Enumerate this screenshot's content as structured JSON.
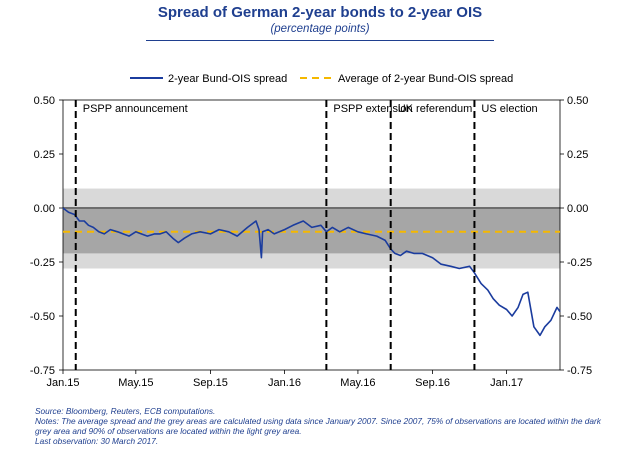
{
  "header": {
    "title": "Spread of German 2-year bonds to 2-year OIS",
    "subtitle": "(percentage points)"
  },
  "colors": {
    "series": "#1b3c9e",
    "average": "#f5b800",
    "dark_grey": "#a6a6a6",
    "light_grey": "#d9d9d9",
    "note_text": "#1f3f8f"
  },
  "chart_data": {
    "type": "line",
    "title": "Spread of German 2-year bonds to 2-year OIS",
    "subtitle": "(percentage points)",
    "ylim": [
      -0.75,
      0.5
    ],
    "y_ticks": [
      0.5,
      0.25,
      0.0,
      -0.25,
      -0.5,
      -0.75
    ],
    "y_tick_labels": [
      "0.50",
      "0.25",
      "0.00",
      "-0.25",
      "-0.50",
      "-0.75"
    ],
    "x_range": [
      "2015-01-01",
      "2017-03-30"
    ],
    "x_ticks": [
      "2015-01-01",
      "2015-05-01",
      "2015-09-01",
      "2016-01-01",
      "2016-05-01",
      "2016-09-01",
      "2017-01-01"
    ],
    "x_tick_labels": [
      "Jan.15",
      "May.15",
      "Sep.15",
      "Jan.16",
      "May.16",
      "Sep.16",
      "Jan.17"
    ],
    "legend": {
      "position": "top",
      "entries": [
        "2-year Bund-OIS spread",
        "Average of 2-year Bund-OIS spread"
      ]
    },
    "average": -0.11,
    "bands": {
      "dark": [
        -0.21,
        0.0
      ],
      "light": [
        -0.28,
        0.09
      ]
    },
    "events": [
      {
        "date": "2015-01-22",
        "label": "PSPP announcement"
      },
      {
        "date": "2016-03-10",
        "label": "PSPP extension"
      },
      {
        "date": "2016-06-24",
        "label": "UK referendum"
      },
      {
        "date": "2016-11-09",
        "label": "US election"
      }
    ],
    "series": [
      {
        "name": "2-year Bund-OIS spread",
        "points": [
          [
            "2015-01-01",
            0.0
          ],
          [
            "2015-01-10",
            -0.02
          ],
          [
            "2015-01-20",
            -0.03
          ],
          [
            "2015-01-28",
            -0.06
          ],
          [
            "2015-02-05",
            -0.06
          ],
          [
            "2015-02-12",
            -0.08
          ],
          [
            "2015-02-20",
            -0.09
          ],
          [
            "2015-03-01",
            -0.11
          ],
          [
            "2015-03-10",
            -0.12
          ],
          [
            "2015-03-20",
            -0.1
          ],
          [
            "2015-04-01",
            -0.11
          ],
          [
            "2015-04-10",
            -0.12
          ],
          [
            "2015-04-20",
            -0.13
          ],
          [
            "2015-05-01",
            -0.11
          ],
          [
            "2015-05-10",
            -0.12
          ],
          [
            "2015-05-20",
            -0.13
          ],
          [
            "2015-06-01",
            -0.12
          ],
          [
            "2015-06-10",
            -0.12
          ],
          [
            "2015-06-20",
            -0.11
          ],
          [
            "2015-07-01",
            -0.14
          ],
          [
            "2015-07-10",
            -0.16
          ],
          [
            "2015-07-20",
            -0.14
          ],
          [
            "2015-08-01",
            -0.12
          ],
          [
            "2015-08-15",
            -0.11
          ],
          [
            "2015-09-01",
            -0.12
          ],
          [
            "2015-09-15",
            -0.1
          ],
          [
            "2015-10-01",
            -0.11
          ],
          [
            "2015-10-15",
            -0.13
          ],
          [
            "2015-11-01",
            -0.09
          ],
          [
            "2015-11-15",
            -0.06
          ],
          [
            "2015-11-20",
            -0.1
          ],
          [
            "2015-11-24",
            -0.23
          ],
          [
            "2015-11-26",
            -0.11
          ],
          [
            "2015-12-05",
            -0.1
          ],
          [
            "2015-12-15",
            -0.12
          ],
          [
            "2016-01-01",
            -0.1
          ],
          [
            "2016-01-15",
            -0.08
          ],
          [
            "2016-02-01",
            -0.06
          ],
          [
            "2016-02-15",
            -0.09
          ],
          [
            "2016-03-01",
            -0.08
          ],
          [
            "2016-03-10",
            -0.11
          ],
          [
            "2016-03-20",
            -0.09
          ],
          [
            "2016-04-01",
            -0.11
          ],
          [
            "2016-04-15",
            -0.09
          ],
          [
            "2016-05-01",
            -0.11
          ],
          [
            "2016-05-15",
            -0.12
          ],
          [
            "2016-06-01",
            -0.13
          ],
          [
            "2016-06-15",
            -0.15
          ],
          [
            "2016-06-24",
            -0.19
          ],
          [
            "2016-07-01",
            -0.21
          ],
          [
            "2016-07-10",
            -0.22
          ],
          [
            "2016-07-20",
            -0.2
          ],
          [
            "2016-08-01",
            -0.21
          ],
          [
            "2016-08-15",
            -0.21
          ],
          [
            "2016-09-01",
            -0.23
          ],
          [
            "2016-09-15",
            -0.26
          ],
          [
            "2016-10-01",
            -0.27
          ],
          [
            "2016-10-15",
            -0.28
          ],
          [
            "2016-11-01",
            -0.27
          ],
          [
            "2016-11-09",
            -0.3
          ],
          [
            "2016-11-20",
            -0.35
          ],
          [
            "2016-12-01",
            -0.38
          ],
          [
            "2016-12-10",
            -0.42
          ],
          [
            "2016-12-20",
            -0.45
          ],
          [
            "2017-01-01",
            -0.47
          ],
          [
            "2017-01-10",
            -0.5
          ],
          [
            "2017-01-20",
            -0.46
          ],
          [
            "2017-01-28",
            -0.4
          ],
          [
            "2017-02-05",
            -0.39
          ],
          [
            "2017-02-15",
            -0.55
          ],
          [
            "2017-02-25",
            -0.59
          ],
          [
            "2017-03-05",
            -0.55
          ],
          [
            "2017-03-15",
            -0.52
          ],
          [
            "2017-03-25",
            -0.46
          ],
          [
            "2017-03-30",
            -0.48
          ]
        ]
      },
      {
        "name": "Average of 2-year Bund-OIS spread",
        "value": -0.11
      }
    ]
  },
  "notes": {
    "source": "Source: Bloomberg, Reuters, ECB computations.",
    "notes": "Notes: The average spread and the grey areas are calculated using data since January 2007. Since 2007, 75% of observations are located within the dark grey area and 90% of observations are located within the light grey area.",
    "last_observation": "Last observation: 30 March 2017."
  }
}
